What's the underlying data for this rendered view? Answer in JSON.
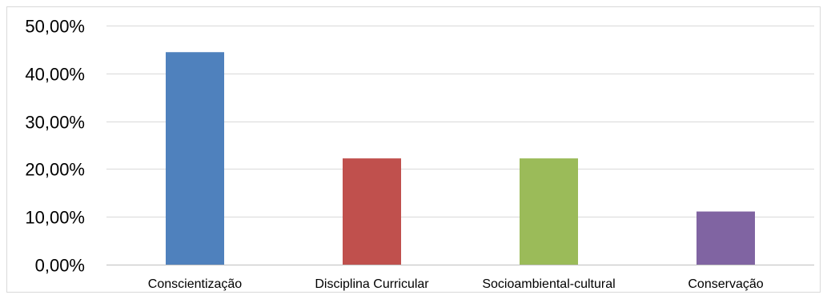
{
  "chart_data": {
    "type": "bar",
    "title": "",
    "xlabel": "",
    "ylabel": "",
    "categories": [
      "Conscientização",
      "Disciplina Curricular",
      "Socioambiental-cultural",
      "Conservação"
    ],
    "values": [
      44.44,
      22.22,
      22.22,
      11.11
    ],
    "colors": [
      "#4f81bd",
      "#c0504d",
      "#9bbb59",
      "#8064a2"
    ],
    "ylim": [
      0,
      50
    ],
    "yticks": [
      0,
      10,
      20,
      30,
      40,
      50
    ],
    "ytick_labels": [
      "0,00%",
      "10,00%",
      "20,00%",
      "30,00%",
      "40,00%",
      "50,00%"
    ],
    "grid": true,
    "legend": "none"
  }
}
